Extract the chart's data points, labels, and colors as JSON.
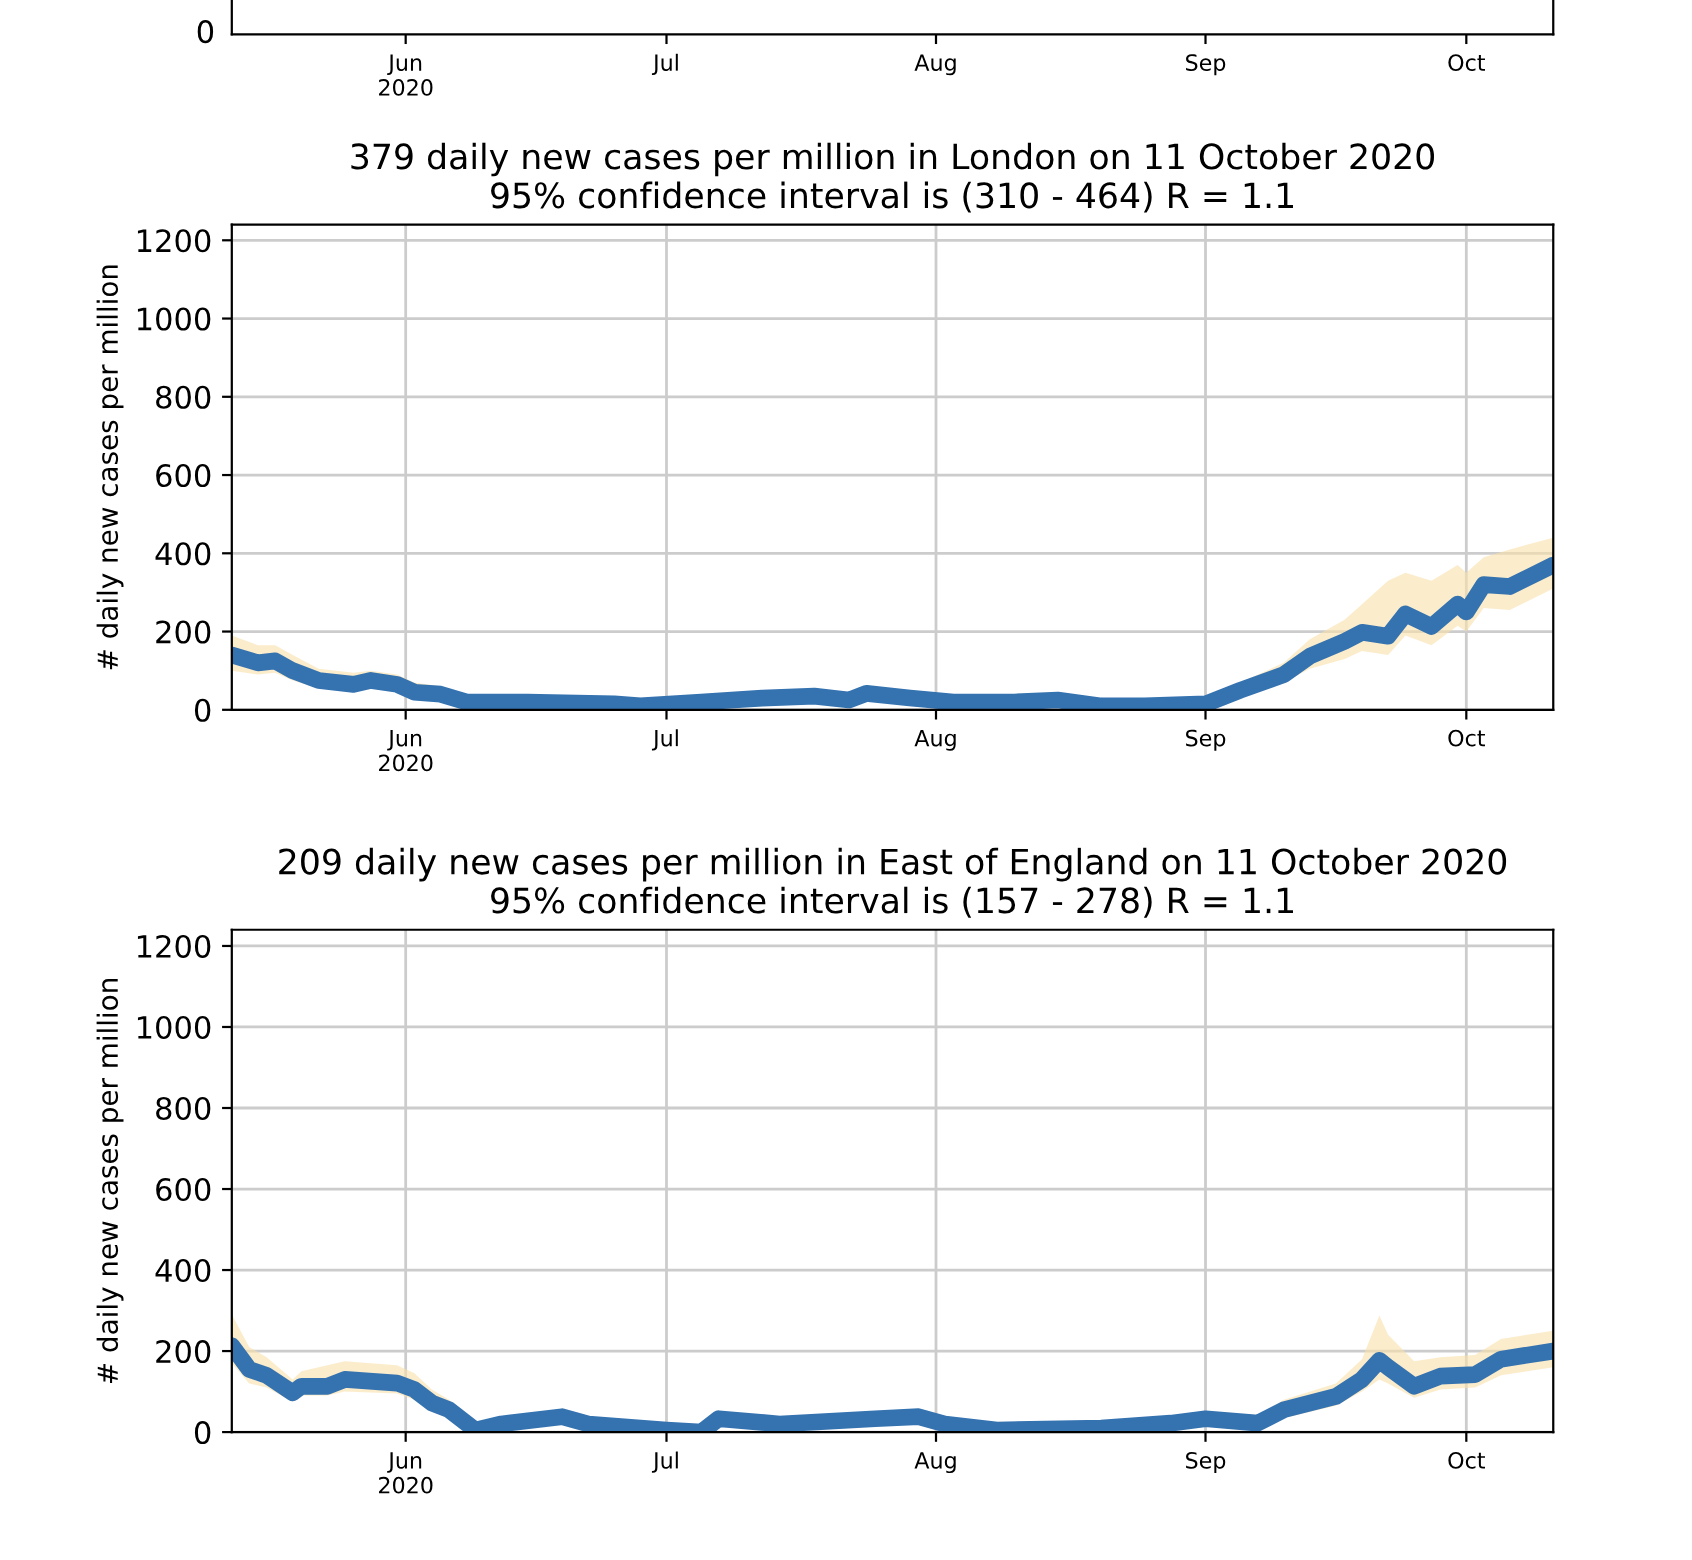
{
  "chart_data": [
    {
      "type": "other",
      "annotations": [
        "0",
        "Jun\n2020",
        "Jul",
        "Aug",
        "Sep",
        "Oct"
      ]
    },
    {
      "type": "line",
      "title": "379 daily new cases per million in London on 11 October 2020\n95% confidence interval is (310 - 464) R = 1.1",
      "ylabel": "# daily new cases per million",
      "xlim": [
        "2020-05-12",
        "2020-10-11"
      ],
      "xticks": [
        {
          "value": "2020-06-01",
          "label": "Jun\n2020"
        },
        {
          "value": "2020-07-01",
          "label": "Jul"
        },
        {
          "value": "2020-08-01",
          "label": "Aug"
        },
        {
          "value": "2020-09-01",
          "label": "Sep"
        },
        {
          "value": "2020-10-01",
          "label": "Oct"
        }
      ],
      "ylim": [
        0,
        1240
      ],
      "yticks": [
        0,
        200,
        400,
        600,
        800,
        1000,
        1200
      ],
      "grid": true,
      "series": [
        {
          "color": "#3572b0",
          "x": [
            "2020-05-12",
            "2020-05-15",
            "2020-05-17",
            "2020-05-19",
            "2020-05-22",
            "2020-05-26",
            "2020-05-28",
            "2020-05-31",
            "2020-06-02",
            "2020-06-05",
            "2020-06-08",
            "2020-06-15",
            "2020-06-25",
            "2020-06-28",
            "2020-07-05",
            "2020-07-12",
            "2020-07-18",
            "2020-07-22",
            "2020-07-24",
            "2020-07-29",
            "2020-08-03",
            "2020-08-10",
            "2020-08-15",
            "2020-08-20",
            "2020-08-25",
            "2020-09-01",
            "2020-09-05",
            "2020-09-10",
            "2020-09-13",
            "2020-09-17",
            "2020-09-19",
            "2020-09-22",
            "2020-09-24",
            "2020-09-27",
            "2020-09-30",
            "2020-10-01",
            "2020-10-03",
            "2020-10-06",
            "2020-10-11"
          ],
          "values": [
            140,
            120,
            125,
            100,
            75,
            65,
            75,
            65,
            45,
            40,
            20,
            20,
            15,
            10,
            20,
            30,
            35,
            25,
            42,
            30,
            20,
            20,
            25,
            10,
            10,
            15,
            50,
            90,
            137,
            175,
            198,
            188,
            245,
            213,
            270,
            250,
            320,
            315,
            370
          ],
          "lower": [
            100,
            90,
            95,
            75,
            55,
            50,
            55,
            50,
            30,
            25,
            10,
            10,
            5,
            5,
            10,
            20,
            20,
            15,
            30,
            20,
            10,
            10,
            15,
            5,
            5,
            5,
            35,
            70,
            105,
            130,
            150,
            140,
            190,
            165,
            215,
            200,
            260,
            255,
            310
          ],
          "upper": [
            190,
            165,
            165,
            140,
            105,
            95,
            100,
            90,
            70,
            60,
            35,
            35,
            30,
            25,
            35,
            45,
            50,
            40,
            60,
            45,
            35,
            35,
            40,
            25,
            25,
            30,
            70,
            120,
            180,
            230,
            270,
            330,
            350,
            330,
            370,
            350,
            390,
            410,
            440
          ]
        }
      ]
    },
    {
      "type": "line",
      "title": "209 daily new cases per million in East of England on 11 October 2020\n95% confidence interval is (157 - 278) R = 1.1",
      "ylabel": "# daily new cases per million",
      "xlim": [
        "2020-05-12",
        "2020-10-11"
      ],
      "xticks": [
        {
          "value": "2020-06-01",
          "label": "Jun\n2020"
        },
        {
          "value": "2020-07-01",
          "label": "Jul"
        },
        {
          "value": "2020-08-01",
          "label": "Aug"
        },
        {
          "value": "2020-09-01",
          "label": "Sep"
        },
        {
          "value": "2020-10-01",
          "label": "Oct"
        }
      ],
      "ylim": [
        0,
        1240
      ],
      "yticks": [
        0,
        200,
        400,
        600,
        800,
        1000,
        1200
      ],
      "grid": true,
      "series": [
        {
          "color": "#3572b0",
          "x": [
            "2020-05-12",
            "2020-05-14",
            "2020-05-16",
            "2020-05-19",
            "2020-05-20",
            "2020-05-23",
            "2020-05-25",
            "2020-05-31",
            "2020-06-02",
            "2020-06-04",
            "2020-06-06",
            "2020-06-09",
            "2020-06-12",
            "2020-06-19",
            "2020-06-22",
            "2020-07-01",
            "2020-07-05",
            "2020-07-07",
            "2020-07-14",
            "2020-07-25",
            "2020-07-30",
            "2020-08-02",
            "2020-08-08",
            "2020-08-20",
            "2020-08-28",
            "2020-09-01",
            "2020-09-07",
            "2020-09-10",
            "2020-09-16",
            "2020-09-19",
            "2020-09-21",
            "2020-09-22",
            "2020-09-25",
            "2020-09-28",
            "2020-10-02",
            "2020-10-05",
            "2020-10-11"
          ],
          "values": [
            213,
            155,
            140,
            97,
            113,
            113,
            130,
            121,
            105,
            72,
            55,
            5,
            20,
            38,
            20,
            5,
            0,
            33,
            20,
            33,
            38,
            20,
            5,
            10,
            22,
            33,
            22,
            55,
            88,
            130,
            177,
            160,
            113,
            138,
            142,
            180,
            200
          ],
          "lower": [
            170,
            120,
            110,
            75,
            90,
            90,
            100,
            95,
            80,
            55,
            40,
            0,
            10,
            25,
            10,
            0,
            0,
            20,
            10,
            20,
            25,
            10,
            0,
            5,
            10,
            20,
            10,
            35,
            65,
            100,
            130,
            120,
            85,
            105,
            110,
            140,
            160
          ],
          "upper": [
            290,
            210,
            185,
            130,
            150,
            165,
            175,
            165,
            145,
            105,
            80,
            20,
            35,
            55,
            35,
            15,
            10,
            50,
            35,
            50,
            55,
            35,
            15,
            25,
            40,
            50,
            40,
            80,
            120,
            180,
            288,
            240,
            175,
            185,
            190,
            230,
            250
          ]
        }
      ]
    }
  ]
}
